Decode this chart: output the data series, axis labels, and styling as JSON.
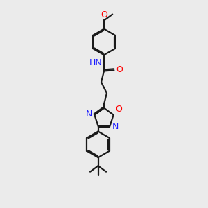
{
  "bg_color": "#ebebeb",
  "line_color": "#1a1a1a",
  "N_color": "#1a1aff",
  "O_color": "#ff0000",
  "bond_lw": 1.6,
  "font_size": 8.5,
  "fig_size": [
    3.0,
    3.0
  ],
  "dpi": 100,
  "xlim": [
    2.0,
    8.0
  ],
  "ylim": [
    0.0,
    13.5
  ]
}
